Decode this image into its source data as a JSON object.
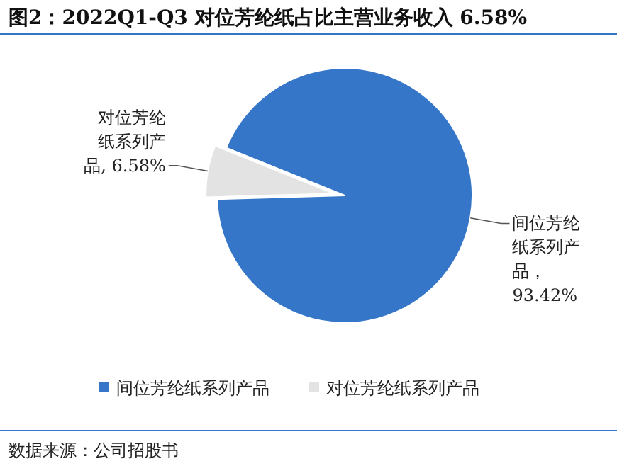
{
  "chart_data": {
    "type": "pie",
    "title": "图2：2022Q1-Q3 对位芳纶纸占比主营业务收入 6.58%",
    "categories": [
      "间位芳纶纸系列产品",
      "对位芳纶纸系列产品"
    ],
    "values": [
      93.42,
      6.58
    ],
    "colors": [
      "#3676c8",
      "#e3e3e3"
    ],
    "value_labels": [
      "间位芳纶纸系列产品，93.42%",
      "对位芳纶纸系列产品, 6.58%"
    ],
    "legend": "bottom",
    "annotations": [
      "数据来源：公司招股书"
    ]
  }
}
